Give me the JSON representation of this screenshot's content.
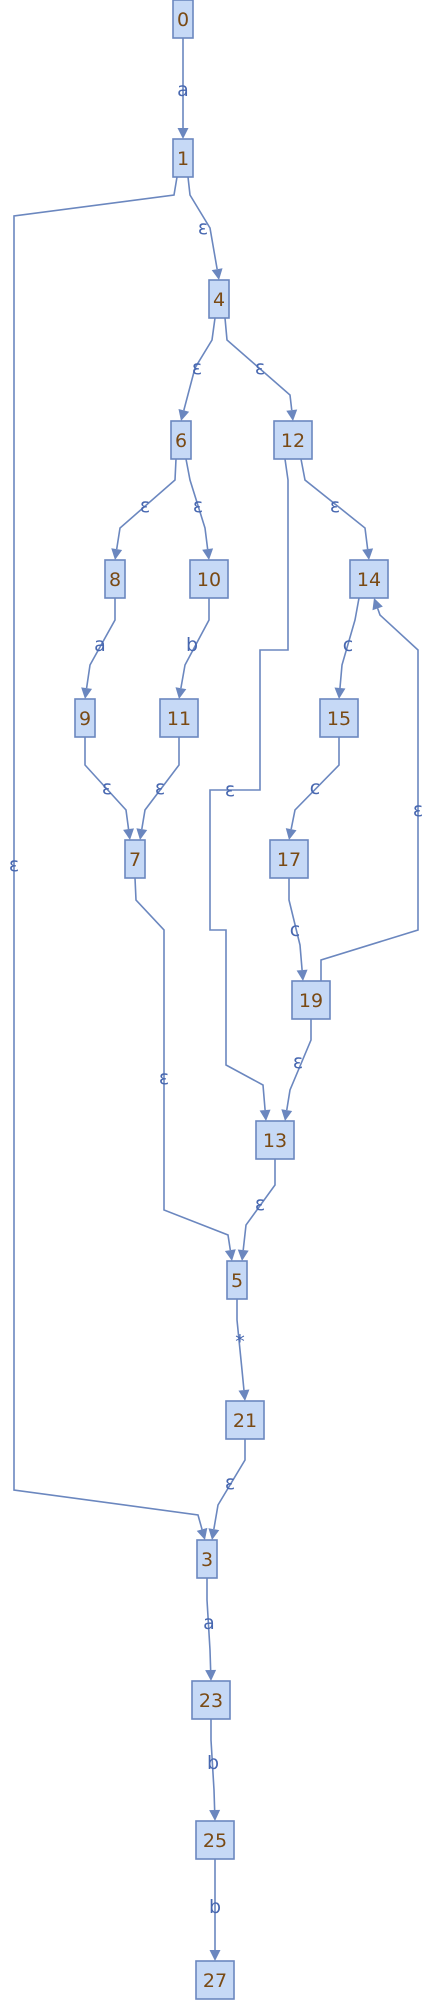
{
  "nodes": [
    {
      "id": "0",
      "label": "0"
    },
    {
      "id": "1",
      "label": "1"
    },
    {
      "id": "4",
      "label": "4"
    },
    {
      "id": "6",
      "label": "6"
    },
    {
      "id": "12",
      "label": "12"
    },
    {
      "id": "8",
      "label": "8"
    },
    {
      "id": "10",
      "label": "10"
    },
    {
      "id": "14",
      "label": "14"
    },
    {
      "id": "9",
      "label": "9"
    },
    {
      "id": "11",
      "label": "11"
    },
    {
      "id": "15",
      "label": "15"
    },
    {
      "id": "7",
      "label": "7"
    },
    {
      "id": "17",
      "label": "17"
    },
    {
      "id": "19",
      "label": "19"
    },
    {
      "id": "13",
      "label": "13"
    },
    {
      "id": "5",
      "label": "5"
    },
    {
      "id": "21",
      "label": "21"
    },
    {
      "id": "3",
      "label": "3"
    },
    {
      "id": "23",
      "label": "23"
    },
    {
      "id": "25",
      "label": "25"
    },
    {
      "id": "27",
      "label": "27"
    }
  ],
  "edges": [
    {
      "id": "e0-1",
      "from": "0",
      "to": "1",
      "label": "a"
    },
    {
      "id": "e1-4",
      "from": "1",
      "to": "4",
      "label": "ε"
    },
    {
      "id": "e1-3",
      "from": "1",
      "to": "3",
      "label": "ε"
    },
    {
      "id": "e4-6",
      "from": "4",
      "to": "6",
      "label": "ε"
    },
    {
      "id": "e4-12",
      "from": "4",
      "to": "12",
      "label": "ε"
    },
    {
      "id": "e6-8",
      "from": "6",
      "to": "8",
      "label": "ε"
    },
    {
      "id": "e6-10",
      "from": "6",
      "to": "10",
      "label": "ε"
    },
    {
      "id": "e12-14",
      "from": "12",
      "to": "14",
      "label": "ε"
    },
    {
      "id": "e12-13",
      "from": "12",
      "to": "13",
      "label": "ε"
    },
    {
      "id": "e8-9",
      "from": "8",
      "to": "9",
      "label": "a"
    },
    {
      "id": "e10-11",
      "from": "10",
      "to": "11",
      "label": "b"
    },
    {
      "id": "e14-15",
      "from": "14",
      "to": "15",
      "label": "c"
    },
    {
      "id": "e9-7",
      "from": "9",
      "to": "7",
      "label": "ε"
    },
    {
      "id": "e11-7",
      "from": "11",
      "to": "7",
      "label": "ε"
    },
    {
      "id": "e15-17",
      "from": "15",
      "to": "17",
      "label": "c"
    },
    {
      "id": "e17-19",
      "from": "17",
      "to": "19",
      "label": "c"
    },
    {
      "id": "e19-14",
      "from": "19",
      "to": "14",
      "label": "ε"
    },
    {
      "id": "e19-13",
      "from": "19",
      "to": "13",
      "label": "ε"
    },
    {
      "id": "e7-5",
      "from": "7",
      "to": "5",
      "label": "ε"
    },
    {
      "id": "e13-5",
      "from": "13",
      "to": "5",
      "label": "ε"
    },
    {
      "id": "e5-21",
      "from": "5",
      "to": "21",
      "label": "*"
    },
    {
      "id": "e21-3",
      "from": "21",
      "to": "3",
      "label": "ε"
    },
    {
      "id": "e3-23",
      "from": "3",
      "to": "23",
      "label": "a"
    },
    {
      "id": "e23-25",
      "from": "23",
      "to": "25",
      "label": "b"
    },
    {
      "id": "e25-27",
      "from": "25",
      "to": "27",
      "label": "b"
    }
  ],
  "colors": {
    "node_fill": "#c6d9f6",
    "node_stroke": "#6b87bf",
    "node_text": "#7a4a14",
    "edge": "#6b87bf",
    "edge_label": "#4767b0"
  }
}
